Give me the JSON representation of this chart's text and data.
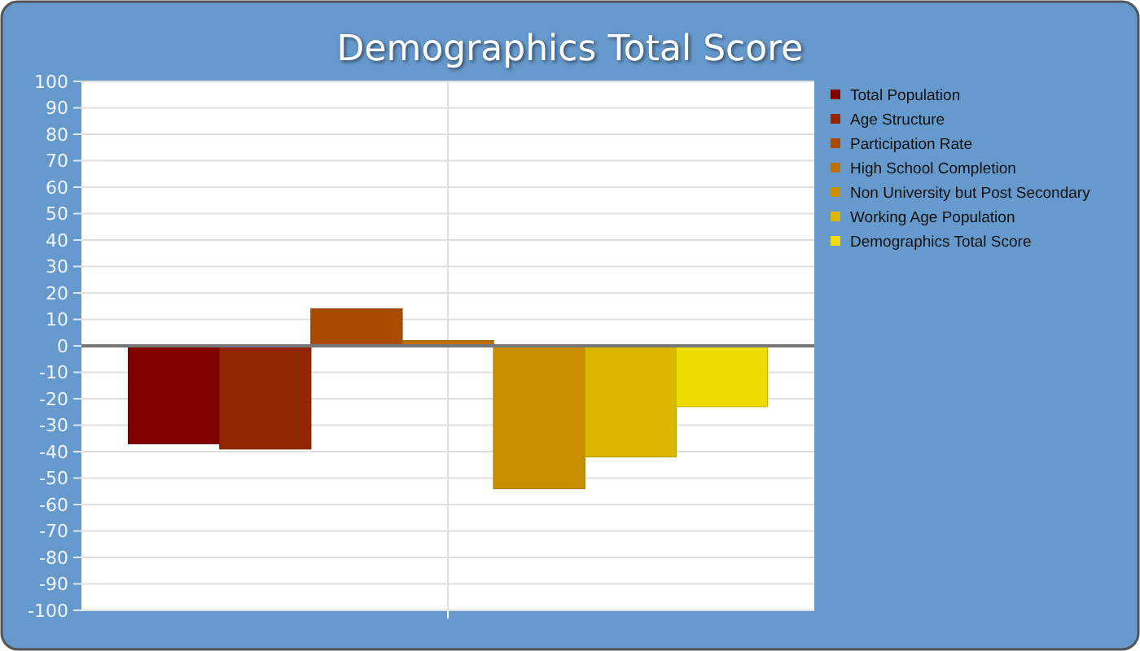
{
  "chart_data": {
    "type": "bar",
    "title": "Demographics Total Score",
    "categories": [
      null
    ],
    "series": [
      {
        "name": "Total Population",
        "color": "#800000",
        "values": [
          -37
        ]
      },
      {
        "name": "Age Structure",
        "color": "#912600",
        "values": [
          -39
        ]
      },
      {
        "name": "Participation Rate",
        "color": "#a84c00",
        "values": [
          14
        ]
      },
      {
        "name": "High School Completion",
        "color": "#b97000",
        "values": [
          2
        ]
      },
      {
        "name": "Non University but Post Secondary",
        "color": "#c98f00",
        "values": [
          -54
        ]
      },
      {
        "name": "Working Age Population",
        "color": "#dbb700",
        "values": [
          -42
        ]
      },
      {
        "name": "Demographics Total Score",
        "color": "#eedb00",
        "values": [
          -23
        ]
      }
    ],
    "ylim": [
      -100,
      100
    ],
    "yticks": [
      -100,
      -90,
      -80,
      -70,
      -60,
      -50,
      -40,
      -30,
      -20,
      -10,
      0,
      10,
      20,
      30,
      40,
      50,
      60,
      70,
      80,
      90,
      100
    ],
    "grid": true,
    "legend": "top right"
  }
}
